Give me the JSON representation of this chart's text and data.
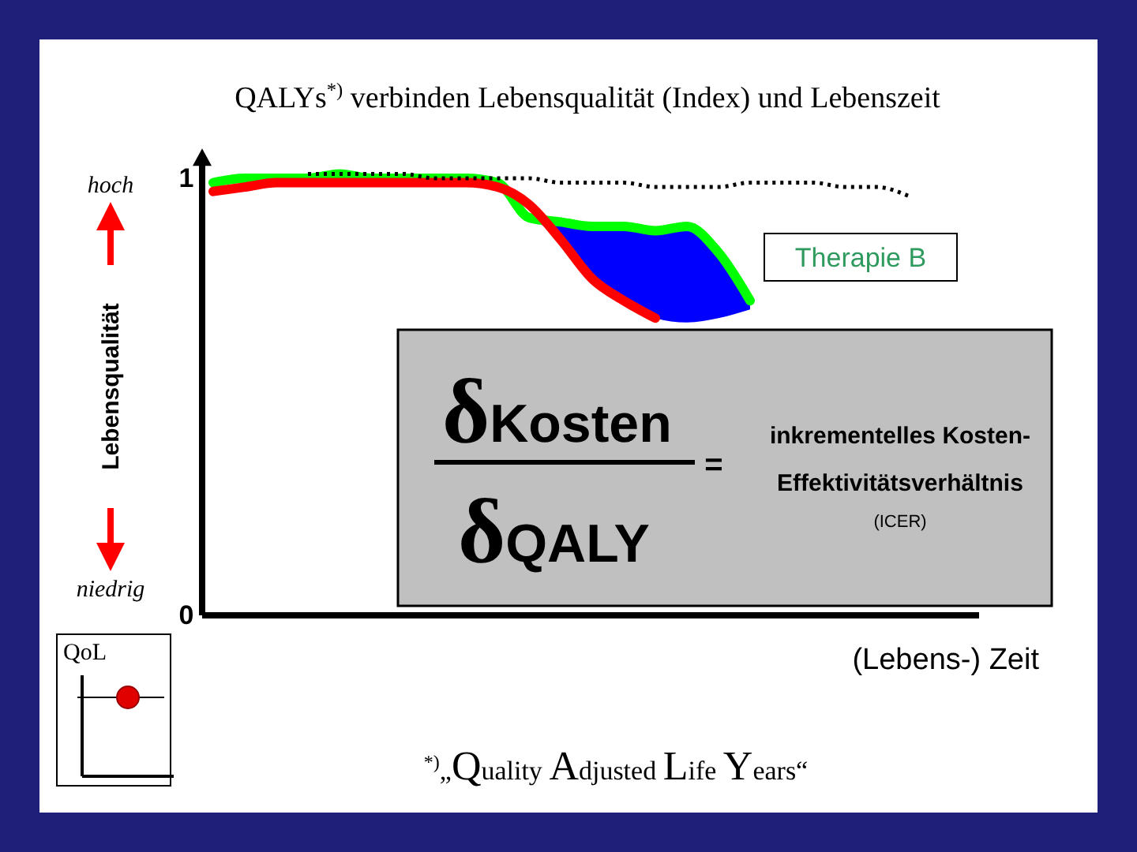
{
  "chart_data": {
    "type": "line",
    "title": "QALYs$^{*)}$ verbinden Lebensqualität (Index) und Lebenszeit",
    "ylabel": "Lebensqualität",
    "xlabel": "(Lebens-) Zeit",
    "categories": [
      null,
      null,
      null,
      null,
      null,
      null,
      null,
      null,
      null,
      null,
      null,
      null,
      null,
      null,
      null,
      null,
      null,
      null,
      null,
      null,
      null,
      null,
      null,
      null,
      null
    ],
    "ylim": [
      0,
      1.05
    ],
    "yticks": [
      0,
      1
    ],
    "grid": false,
    "legend": "top right",
    "line_style": "solid",
    "marker": "none",
    "series": [
      {
        "name": "Therapie B",
        "color": "#00ff00",
        "values": [
          0.99,
          1.0,
          1.0,
          1.0,
          1.01,
          1.0,
          1.0,
          1.0,
          1.0,
          0.99,
          0.91,
          0.9,
          0.89,
          0.89,
          0.88,
          0.89,
          0.83,
          0.72,
          null,
          null,
          null,
          null,
          null,
          null,
          null
        ],
        "lower": [
          null,
          null,
          null,
          null,
          null,
          null,
          null,
          null,
          null,
          null,
          0.91,
          0.86,
          0.77,
          0.72,
          0.68,
          0.67,
          0.68,
          0.7,
          null,
          null,
          null,
          null,
          null,
          null,
          null
        ],
        "upper": [
          null,
          null,
          null,
          null,
          null,
          null,
          null,
          null,
          null,
          null,
          0.91,
          0.9,
          0.89,
          0.89,
          0.88,
          0.89,
          0.83,
          0.72,
          null,
          null,
          null,
          null,
          null,
          null,
          null
        ]
      },
      {
        "color": "#ff0000",
        "values": [
          0.97,
          0.98,
          0.99,
          0.99,
          0.99,
          0.99,
          0.99,
          0.99,
          0.99,
          0.98,
          0.94,
          0.86,
          0.77,
          0.72,
          0.68,
          null,
          null,
          null,
          null,
          null,
          null,
          null,
          null,
          null,
          null
        ]
      },
      {
        "color": "#000000",
        "line_style": "dotted",
        "values": [
          null,
          null,
          null,
          1.01,
          1.01,
          1.01,
          1.01,
          1.0,
          1.0,
          1.0,
          1.0,
          0.99,
          0.99,
          0.99,
          0.98,
          0.98,
          0.98,
          0.99,
          0.99,
          0.99,
          0.98,
          0.98,
          0.96,
          null,
          null
        ]
      }
    ],
    "annotations": [
      "hoch",
      "niedrig",
      "δKosten",
      "δQALY",
      "=",
      "inkrementelles Kosten-",
      "Effektivitätsverhältnis",
      "(ICER)",
      "QoL",
      "$^{*)}$„Quality Adjusted Life Years“"
    ]
  }
}
